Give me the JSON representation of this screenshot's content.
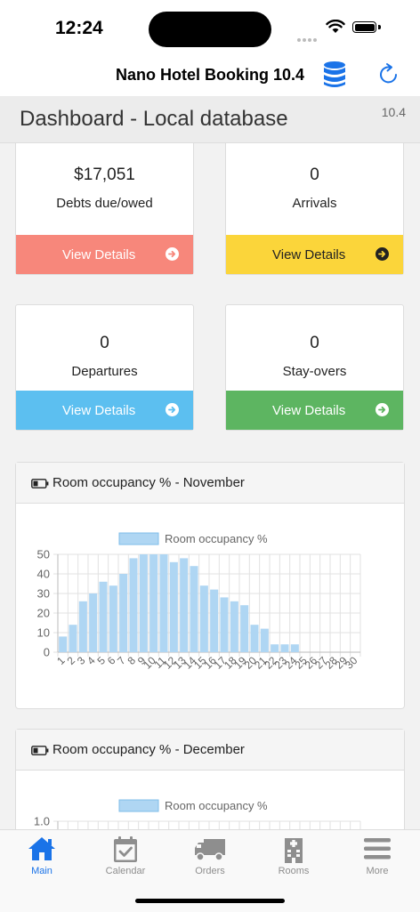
{
  "status": {
    "time": "12:24"
  },
  "app": {
    "title": "Nano Hotel Booking 10.4"
  },
  "page": {
    "title": "Dashboard - Local database",
    "version": "10.4"
  },
  "cards": [
    {
      "value": "$17,051",
      "label": "Debts due/owed",
      "button": "View Details",
      "color": "#f7877b"
    },
    {
      "value": "0",
      "label": "Arrivals",
      "button": "View Details",
      "color": "#fbd53a"
    },
    {
      "value": "0",
      "label": "Departures",
      "button": "View Details",
      "color": "#5cbff0"
    },
    {
      "value": "0",
      "label": "Stay-overs",
      "button": "View Details",
      "color": "#5db561"
    }
  ],
  "panels": [
    {
      "title": "Room occupancy % - November"
    },
    {
      "title": "Room occupancy % - December"
    }
  ],
  "chart_data": [
    {
      "type": "bar",
      "title": "",
      "legend": "top",
      "series": [
        {
          "name": "Room occupancy %",
          "color": "#afd6f3",
          "values": [
            8,
            14,
            26,
            30,
            36,
            34,
            40,
            48,
            50,
            50,
            50,
            46,
            48,
            44,
            34,
            32,
            28,
            26,
            24,
            14,
            12,
            4,
            4,
            4,
            0,
            0,
            0,
            0,
            0,
            0
          ]
        }
      ],
      "categories": [
        "1",
        "2",
        "3",
        "4",
        "5",
        "6",
        "7",
        "8",
        "9",
        "10",
        "11",
        "12",
        "13",
        "14",
        "15",
        "16",
        "17",
        "18",
        "19",
        "20",
        "21",
        "22",
        "23",
        "24",
        "25",
        "26",
        "27",
        "28",
        "29",
        "30"
      ],
      "yticks": [
        "0",
        "10",
        "20",
        "30",
        "40",
        "50"
      ],
      "ylim": [
        0,
        50
      ],
      "grid": true
    },
    {
      "type": "bar",
      "title": "",
      "legend": "top",
      "series": [
        {
          "name": "Room occupancy %",
          "color": "#afd6f3",
          "values": []
        }
      ],
      "yticks": [
        "1.0"
      ],
      "ylim": [
        0,
        1
      ],
      "grid": true
    }
  ],
  "tabs": [
    {
      "label": "Main",
      "icon": "home-icon",
      "active": true
    },
    {
      "label": "Calendar",
      "icon": "calendar-icon",
      "active": false
    },
    {
      "label": "Orders",
      "icon": "truck-icon",
      "active": false
    },
    {
      "label": "Rooms",
      "icon": "building-icon",
      "active": false
    },
    {
      "label": "More",
      "icon": "menu-icon",
      "active": false
    }
  ],
  "colors": {
    "accent": "#1a73e8",
    "chartBar": "#afd6f3",
    "chartBarBorder": "#7fbde9"
  }
}
